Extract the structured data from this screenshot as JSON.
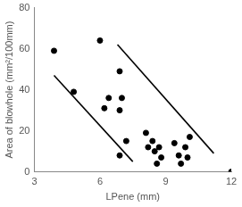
{
  "chart_data": {
    "type": "scatter",
    "x_label": "LPene (mm)",
    "y_label": "Area of blowhole (mm²/100mm)",
    "xlim": [
      3,
      12
    ],
    "xticks": [
      3,
      6,
      9,
      12
    ],
    "ylim": [
      0,
      80
    ],
    "yticks": [
      0,
      20,
      40,
      60,
      80
    ],
    "grid": false,
    "series": [
      {
        "type": "scatter",
        "color": "#000000",
        "marker": "circle",
        "x": [
          3.9,
          4.8,
          6.0,
          6.2,
          6.4,
          6.9,
          7.0,
          6.9,
          7.2,
          6.9,
          8.1,
          8.2,
          8.4,
          8.5,
          8.6,
          8.7,
          8.8,
          9.4,
          9.6,
          9.7,
          9.9,
          10.0,
          10.1,
          12.0
        ],
        "values": [
          59,
          39,
          64,
          31,
          36,
          49,
          36,
          30,
          15,
          8,
          19,
          12,
          15,
          10,
          4,
          12,
          7,
          14,
          8,
          4,
          12,
          7,
          17,
          0
        ]
      },
      {
        "type": "line",
        "color": "#000000",
        "line_style": "solid",
        "x": [
          3.9,
          7.5
        ],
        "values": [
          47,
          5
        ]
      },
      {
        "type": "line",
        "color": "#000000",
        "line_style": "solid",
        "x": [
          6.8,
          11.2
        ],
        "values": [
          62,
          9
        ]
      }
    ]
  }
}
